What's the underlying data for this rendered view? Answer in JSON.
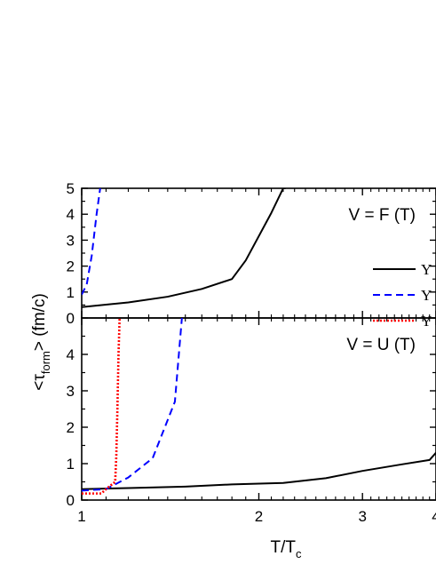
{
  "chart_data": [
    {
      "type": "line",
      "annotation": "V = F (T)",
      "x_scale": "log",
      "xlim": [
        1,
        4
      ],
      "ylim": [
        0,
        5
      ],
      "x_ticks": [
        1,
        2,
        3,
        4
      ],
      "x_tick_labels": [
        "",
        "",
        "",
        ""
      ],
      "y_ticks": [
        0,
        1,
        2,
        3,
        4,
        5
      ],
      "y_tick_labels": [
        "0",
        "1",
        "2",
        "3",
        "4",
        "5"
      ],
      "series": [
        {
          "color": "#000000",
          "dash": "solid",
          "x": [
            1.0,
            1.2,
            1.4,
            1.6,
            1.8,
            1.9,
            2.1,
            2.2,
            2.22
          ],
          "y": [
            0.42,
            0.6,
            0.82,
            1.12,
            1.5,
            2.22,
            4.05,
            5.0,
            5.0
          ]
        },
        {
          "color": "#0000FF",
          "dash": "dashed",
          "x": [
            1.0,
            1.02,
            1.04,
            1.06,
            1.075
          ],
          "y": [
            0.9,
            1.3,
            2.4,
            4.0,
            5.0
          ]
        }
      ],
      "legend": {
        "placement": "right",
        "entries": [
          {
            "label": "Y",
            "color": "#000000",
            "dash": "solid"
          },
          {
            "label": "Y",
            "color": "#0000FF",
            "dash": "dashed"
          },
          {
            "label": "Y",
            "color": "#FF0000",
            "dash": "dotted"
          }
        ]
      }
    },
    {
      "type": "line",
      "annotation": "V = U (T)",
      "x_scale": "log",
      "xlim": [
        1,
        4
      ],
      "ylim": [
        0,
        5
      ],
      "x_ticks": [
        1,
        2,
        3,
        4
      ],
      "x_tick_labels": [
        "1",
        "2",
        "3",
        "4"
      ],
      "y_ticks": [
        0,
        1,
        2,
        3,
        4
      ],
      "y_tick_labels": [
        "0",
        "1",
        "2",
        "3",
        "4"
      ],
      "series": [
        {
          "color": "#000000",
          "dash": "solid",
          "x": [
            1.0,
            1.2,
            1.5,
            1.8,
            2.2,
            2.6,
            3.0,
            3.5,
            3.9,
            4.0
          ],
          "y": [
            0.3,
            0.33,
            0.37,
            0.43,
            0.47,
            0.6,
            0.8,
            0.98,
            1.1,
            1.3
          ]
        },
        {
          "color": "#0000FF",
          "dash": "dashed",
          "x": [
            1.0,
            1.1,
            1.2,
            1.32,
            1.44,
            1.48
          ],
          "y": [
            0.26,
            0.3,
            0.62,
            1.15,
            2.7,
            5.0
          ]
        },
        {
          "color": "#FF0000",
          "dash": "dotted",
          "x": [
            1.0,
            1.08,
            1.1,
            1.14,
            1.145,
            1.15,
            1.155,
            1.16
          ],
          "y": [
            0.18,
            0.18,
            0.3,
            0.5,
            1.2,
            2.5,
            4.0,
            5.0
          ]
        }
      ]
    }
  ],
  "shared_axes": {
    "ylabel_prefix": "<",
    "ylabel_symbol": "τ",
    "ylabel_subscript": "form",
    "ylabel_suffix": "> (fm/c)",
    "xlabel_main": "T/T",
    "xlabel_subscript": "c"
  }
}
